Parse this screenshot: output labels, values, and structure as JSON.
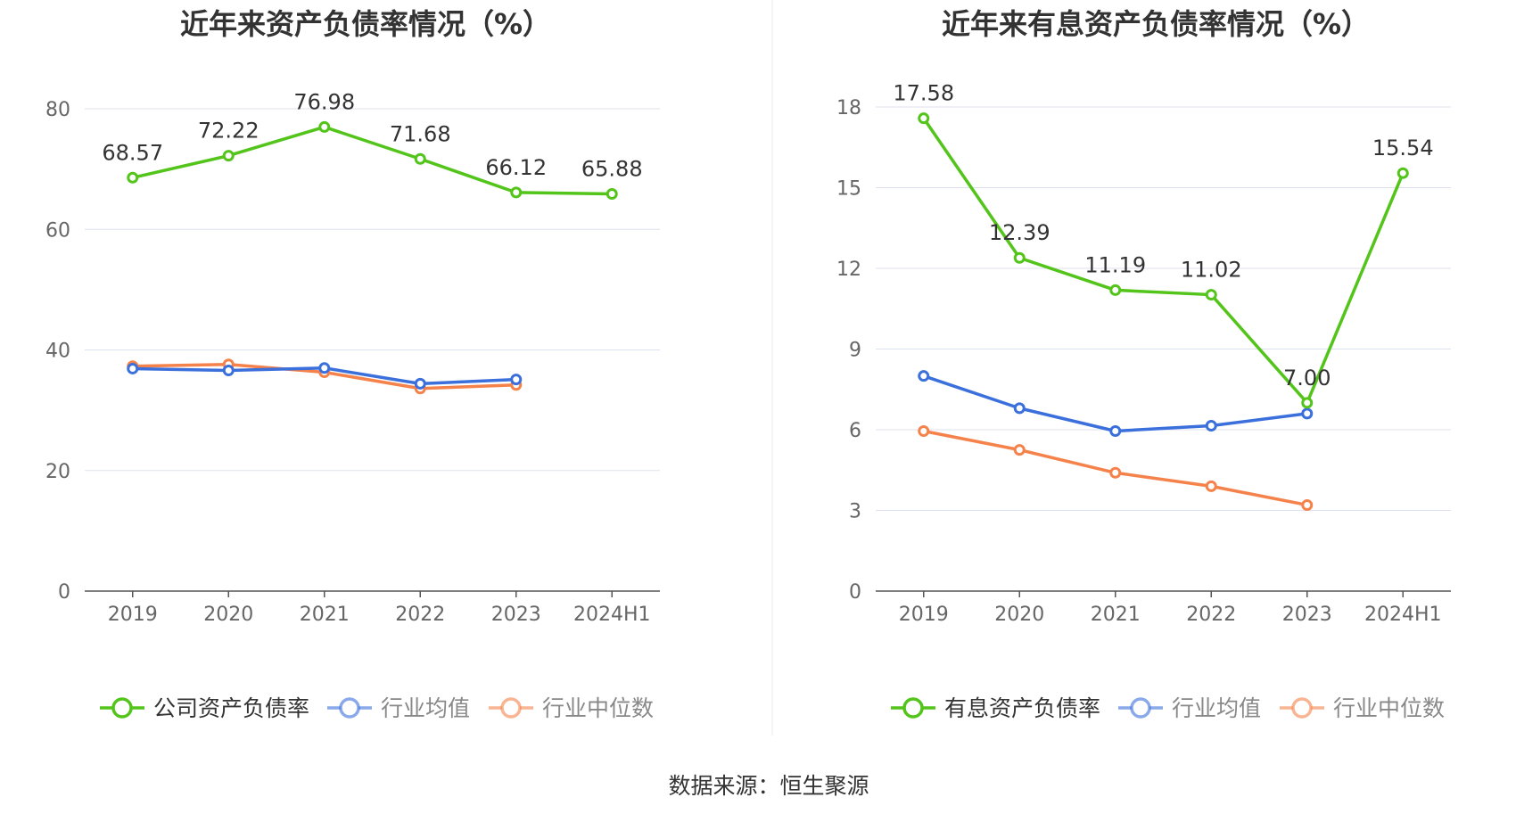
{
  "chart_data": [
    {
      "type": "line",
      "title": "近年来资产负债率情况（%）",
      "categories": [
        "2019",
        "2020",
        "2021",
        "2022",
        "2023",
        "2024H1"
      ],
      "ylim": [
        0,
        80
      ],
      "yticks": [
        0,
        20,
        40,
        60,
        80
      ],
      "ytick_labels": [
        "0",
        "20",
        "40",
        "60",
        "80"
      ],
      "grid": true,
      "legend_position": "bottom",
      "series": [
        {
          "name": "公司资产负债率",
          "color": "#52c41a",
          "values": [
            68.57,
            72.22,
            76.98,
            71.68,
            66.12,
            65.88
          ],
          "labels": [
            "68.57",
            "72.22",
            "76.98",
            "71.68",
            "66.12",
            "65.88"
          ]
        },
        {
          "name": "行业均值",
          "color": "#3a6fdc",
          "values": [
            36.9,
            36.6,
            37.0,
            34.4,
            35.1,
            null
          ]
        },
        {
          "name": "行业中位数",
          "color": "#f5824a",
          "values": [
            37.3,
            37.6,
            36.3,
            33.6,
            34.2,
            null
          ]
        }
      ]
    },
    {
      "type": "line",
      "title": "近年来有息资产负债率情况（%）",
      "categories": [
        "2019",
        "2020",
        "2021",
        "2022",
        "2023",
        "2024H1"
      ],
      "ylim": [
        0,
        18
      ],
      "yticks": [
        0,
        3,
        6,
        9,
        12,
        15,
        18
      ],
      "ytick_labels": [
        "0",
        "3",
        "6",
        "9",
        "12",
        "15",
        "18"
      ],
      "grid": true,
      "legend_position": "bottom",
      "series": [
        {
          "name": "有息资产负债率",
          "color": "#52c41a",
          "values": [
            17.58,
            12.39,
            11.19,
            11.02,
            7.0,
            15.54
          ],
          "labels": [
            "17.58",
            "12.39",
            "11.19",
            "11.02",
            "7.00",
            "15.54"
          ]
        },
        {
          "name": "行业均值",
          "color": "#3a6fdc",
          "values": [
            8.0,
            6.8,
            5.95,
            6.15,
            6.6,
            null
          ]
        },
        {
          "name": "行业中位数",
          "color": "#f5824a",
          "values": [
            5.95,
            5.25,
            4.4,
            3.9,
            3.2,
            null
          ]
        }
      ]
    }
  ],
  "source": "数据来源：恒生聚源"
}
